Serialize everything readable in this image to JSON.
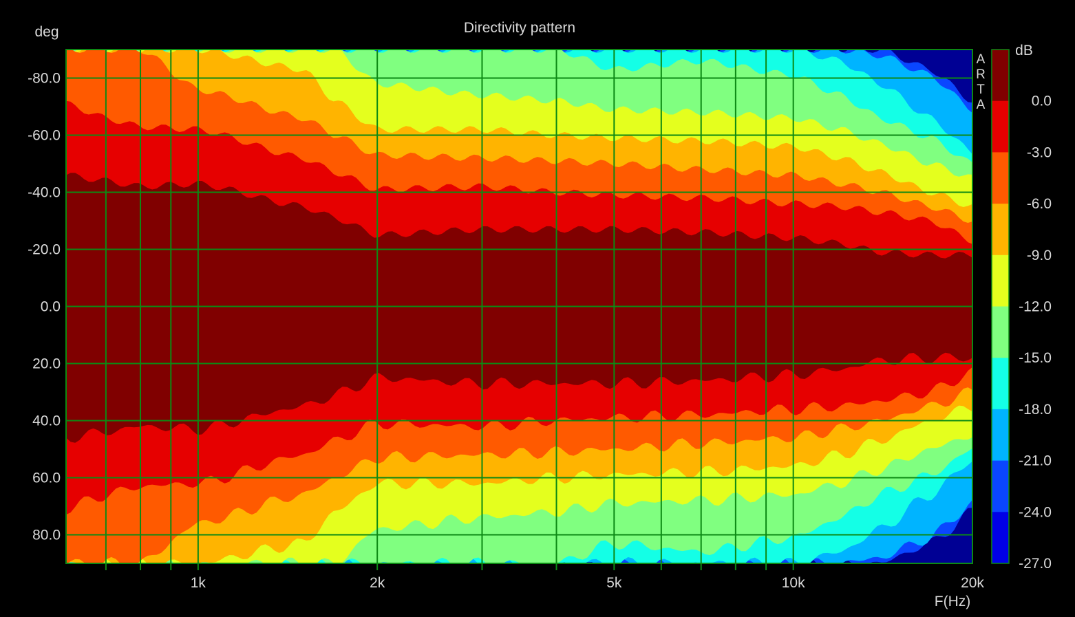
{
  "chart_data": {
    "type": "heatmap",
    "title": "Directivity pattern",
    "xlabel": "F(Hz)",
    "ylabel": "deg",
    "watermark": "ARTA",
    "x_scale": "log",
    "xlim": [
      600,
      20000
    ],
    "ylim": [
      -90,
      90
    ],
    "x_ticks": [
      {
        "value": 1000,
        "label": "1k"
      },
      {
        "value": 2000,
        "label": "2k"
      },
      {
        "value": 5000,
        "label": "5k"
      },
      {
        "value": 10000,
        "label": "10k"
      },
      {
        "value": 20000,
        "label": "20k"
      }
    ],
    "x_grid": [
      700,
      800,
      900,
      1000,
      2000,
      3000,
      4000,
      5000,
      6000,
      7000,
      8000,
      9000,
      10000
    ],
    "y_ticks": [
      {
        "value": -80,
        "label": "-80.0"
      },
      {
        "value": -60,
        "label": "-60.0"
      },
      {
        "value": -40,
        "label": "-40.0"
      },
      {
        "value": -20,
        "label": "-20.0"
      },
      {
        "value": 0,
        "label": "0.0"
      },
      {
        "value": 20,
        "label": "20.0"
      },
      {
        "value": 40,
        "label": "40.0"
      },
      {
        "value": 60,
        "label": "60.0"
      },
      {
        "value": 80,
        "label": "80.0"
      }
    ],
    "grid": true,
    "colorbar": {
      "unit": "dB",
      "labels": [
        "0.0",
        "-3.0",
        "-6.0",
        "-9.0",
        "-12.0",
        "-15.0",
        "-18.0",
        "-21.0",
        "-24.0",
        "-27.0"
      ],
      "colors": [
        "#800000",
        "#e60000",
        "#ff5a00",
        "#ffb400",
        "#e4ff1e",
        "#80ff80",
        "#14ffe6",
        "#00b4ff",
        "#0a46ff",
        "#0000e6"
      ],
      "below_range_color": "#000094"
    },
    "contour_frequencies": [
      600,
      700,
      800,
      1000,
      1500,
      1700,
      2000,
      3000,
      4000,
      5000,
      7000,
      10000,
      12000,
      14000,
      17000,
      20000
    ],
    "contour_boundaries_deg": [
      {
        "level": 0,
        "angles": [
          46,
          44,
          42,
          43,
          35,
          31,
          25,
          27,
          27,
          27,
          26,
          24,
          22,
          19,
          18,
          18
        ]
      },
      {
        "level": -3,
        "angles": [
          71,
          66,
          63,
          62,
          52,
          47,
          41,
          42,
          40,
          39,
          38,
          36,
          35,
          33,
          30,
          23
        ]
      },
      {
        "level": -6,
        "angles": [
          90,
          90,
          90,
          76,
          66,
          60,
          53,
          52,
          51,
          50,
          48,
          46,
          43,
          40,
          35,
          30
        ]
      },
      {
        "level": -9,
        "angles": [
          90,
          90,
          90,
          90,
          83,
          72,
          62,
          62,
          60,
          59,
          58,
          56,
          52,
          47,
          40,
          35
        ]
      },
      {
        "level": -12,
        "angles": [
          90,
          90,
          90,
          90,
          90,
          90,
          78,
          74,
          72,
          69,
          68,
          66,
          62,
          57,
          50,
          45
        ]
      },
      {
        "level": -15,
        "angles": [
          90,
          90,
          90,
          90,
          90,
          90,
          90,
          90,
          90,
          83,
          86,
          81,
          74,
          66,
          59,
          50
        ]
      },
      {
        "level": -18,
        "angles": [
          90,
          90,
          90,
          90,
          90,
          90,
          90,
          90,
          90,
          90,
          90,
          90,
          86,
          78,
          66,
          54
        ]
      },
      {
        "level": -21,
        "angles": [
          90,
          90,
          90,
          90,
          90,
          90,
          90,
          90,
          90,
          90,
          90,
          90,
          90,
          88,
          81,
          69
        ]
      },
      {
        "level": -24,
        "angles": [
          90,
          90,
          90,
          90,
          90,
          90,
          90,
          90,
          90,
          90,
          90,
          90,
          90,
          90,
          83,
          72
        ]
      }
    ]
  }
}
